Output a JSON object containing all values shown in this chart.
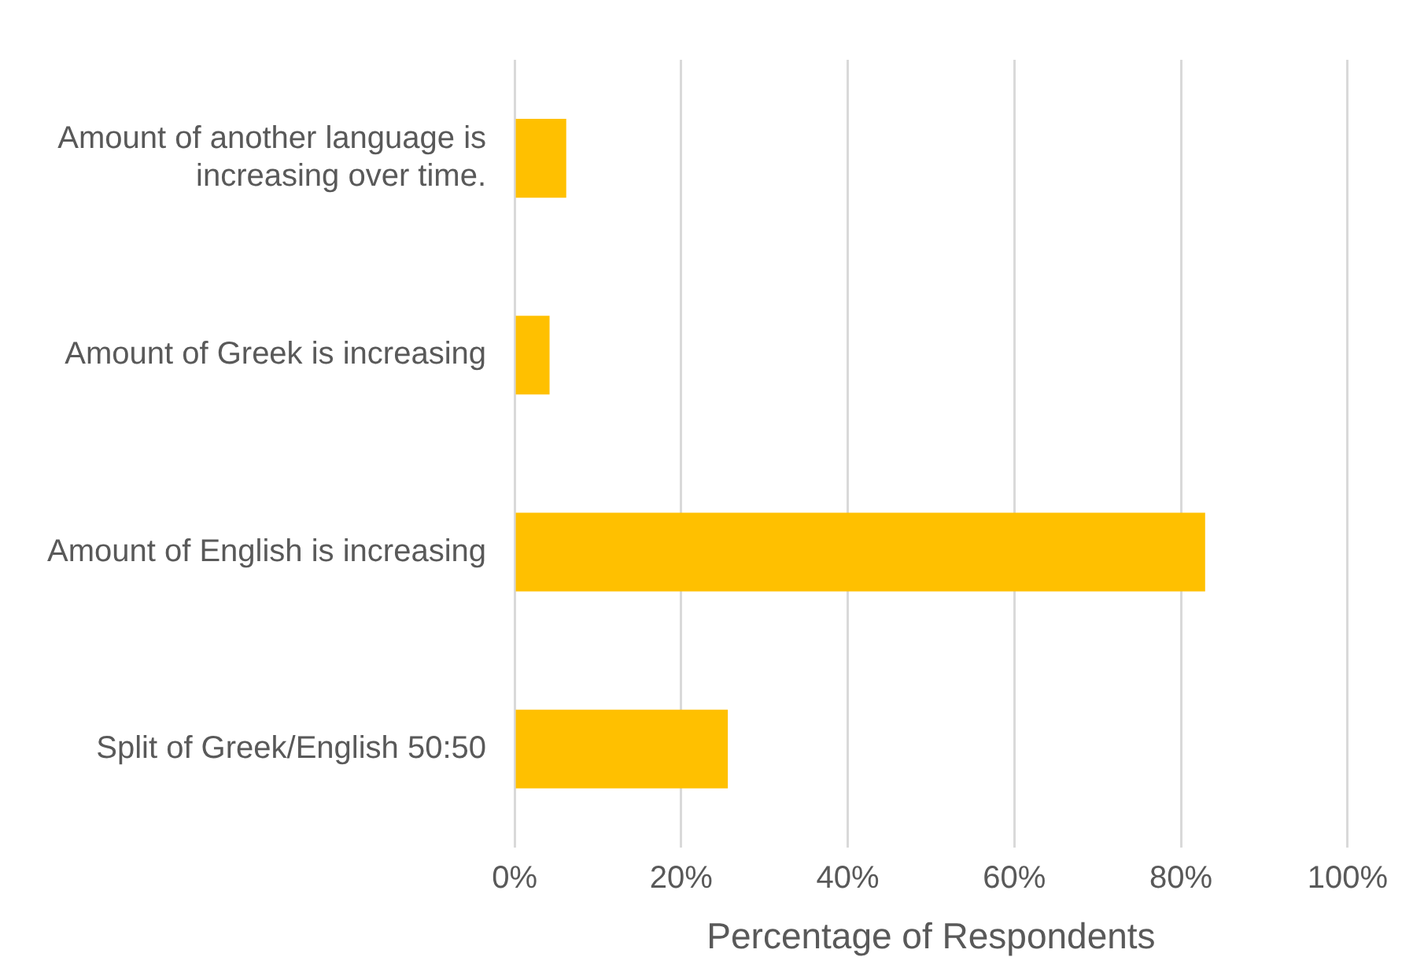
{
  "chart_data": {
    "type": "bar",
    "orientation": "horizontal",
    "xlabel": "Percentage of Respondents",
    "categories": [
      "Amount of another language is increasing over time.",
      "Amount of Greek is increasing",
      "Amount of English is increasing",
      "Split of Greek/English 50:50"
    ],
    "values": [
      6.2,
      4.2,
      82.9,
      25.6
    ],
    "color": "#ffc000",
    "xlim": [
      0,
      100
    ],
    "xticks": [
      {
        "value": 0,
        "label": "0%"
      },
      {
        "value": 20,
        "label": "20%"
      },
      {
        "value": 40,
        "label": "40%"
      },
      {
        "value": 60,
        "label": "60%"
      },
      {
        "value": 80,
        "label": "80%"
      },
      {
        "value": 100,
        "label": "100%"
      }
    ],
    "grid": "x",
    "legend": false
  }
}
